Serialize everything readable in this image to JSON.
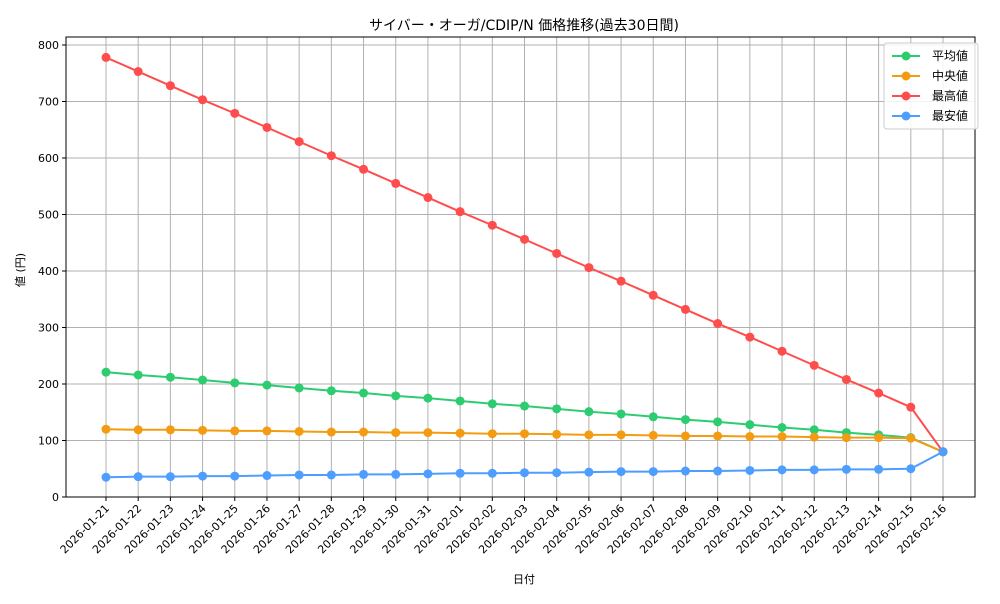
{
  "chart_data": {
    "type": "line",
    "title": "サイバー・オーガ/CDIP/N 価格推移(過去30日間)",
    "xlabel": "日付",
    "ylabel": "値 (円)",
    "ylim": [
      0,
      815
    ],
    "yticks": [
      0,
      100,
      200,
      300,
      400,
      500,
      600,
      700,
      800
    ],
    "grid": true,
    "legend_position": "upper right",
    "categories": [
      "2026-01-21",
      "2026-01-22",
      "2026-01-23",
      "2026-01-24",
      "2026-01-25",
      "2026-01-26",
      "2026-01-27",
      "2026-01-28",
      "2026-01-29",
      "2026-01-30",
      "2026-01-31",
      "2026-02-01",
      "2026-02-02",
      "2026-02-03",
      "2026-02-04",
      "2026-02-05",
      "2026-02-06",
      "2026-02-07",
      "2026-02-08",
      "2026-02-09",
      "2026-02-10",
      "2026-02-11",
      "2026-02-12",
      "2026-02-13",
      "2026-02-14",
      "2026-02-15",
      "2026-02-16"
    ],
    "series": [
      {
        "name": "平均値",
        "color": "#2ecc71",
        "values": [
          221,
          216,
          212,
          207,
          202,
          198,
          193,
          188,
          184,
          179,
          175,
          170,
          165,
          161,
          156,
          151,
          147,
          142,
          137,
          133,
          128,
          123,
          119,
          114,
          110,
          105,
          80
        ]
      },
      {
        "name": "中央値",
        "color": "#f39c12",
        "values": [
          120,
          119,
          119,
          118,
          117,
          117,
          116,
          115,
          115,
          114,
          114,
          113,
          112,
          112,
          111,
          110,
          110,
          109,
          108,
          108,
          107,
          107,
          106,
          105,
          105,
          104,
          80
        ]
      },
      {
        "name": "最高値",
        "color": "#ff4d4d",
        "values": [
          778,
          753,
          728,
          703,
          679,
          654,
          629,
          604,
          580,
          555,
          530,
          505,
          481,
          456,
          431,
          406,
          382,
          357,
          332,
          307,
          283,
          258,
          233,
          208,
          184,
          159,
          80
        ]
      },
      {
        "name": "最安値",
        "color": "#4d9eff",
        "values": [
          35,
          36,
          36,
          37,
          37,
          38,
          39,
          39,
          40,
          40,
          41,
          42,
          42,
          43,
          43,
          44,
          45,
          45,
          46,
          46,
          47,
          48,
          48,
          49,
          49,
          50,
          80
        ]
      }
    ]
  }
}
